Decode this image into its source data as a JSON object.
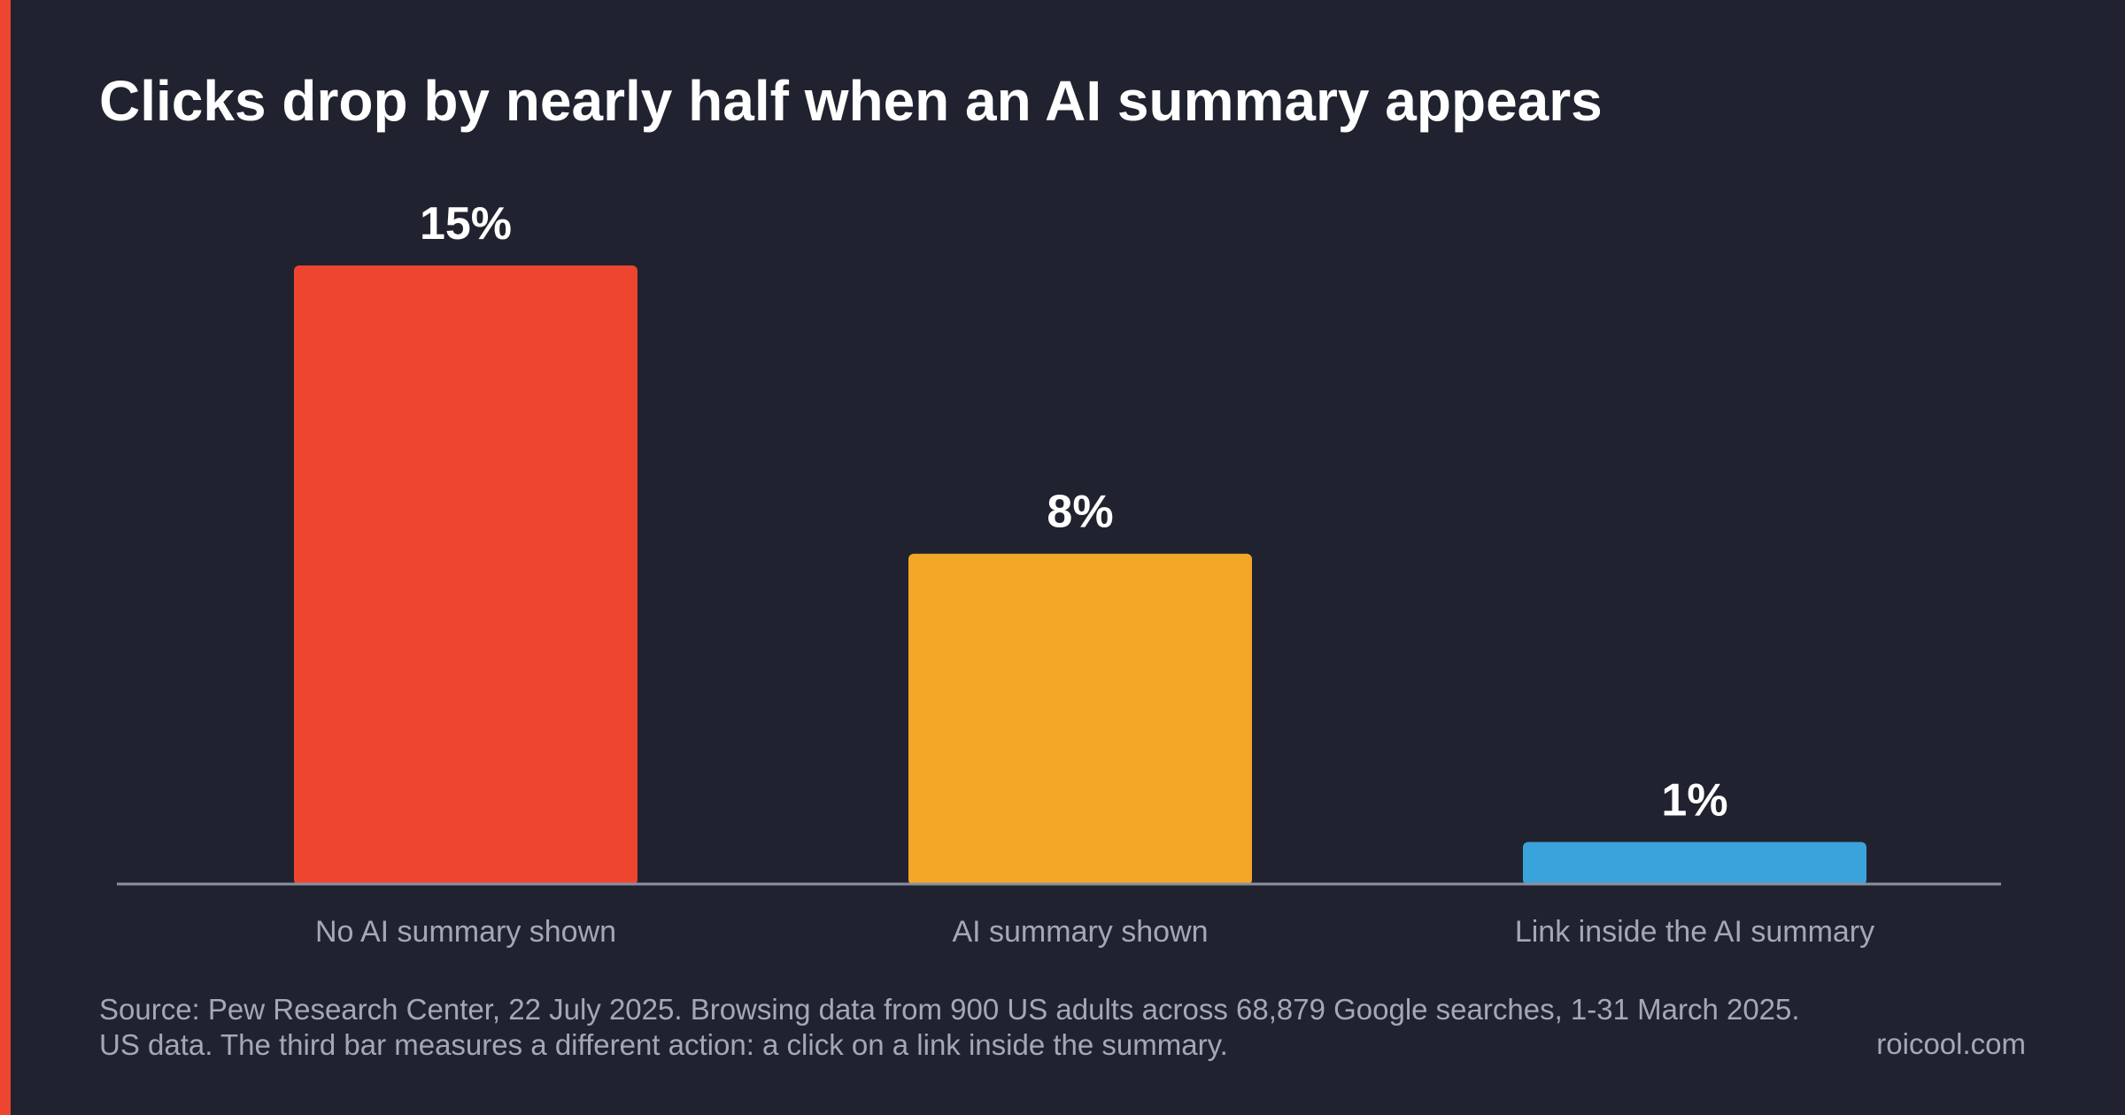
{
  "colors": {
    "background": "#20232f",
    "accent": "#ee4530",
    "muted_text": "#a3a8b8",
    "baseline": "#8b90a0"
  },
  "chart_data": {
    "type": "bar",
    "title": "Clicks drop by nearly half when an AI summary appears",
    "categories": [
      "No AI summary shown",
      "AI summary shown",
      "Link inside the AI summary"
    ],
    "values": [
      15,
      8,
      1
    ],
    "value_labels": [
      "15%",
      "8%",
      "1%"
    ],
    "bar_colors": [
      "#ee4530",
      "#f4a627",
      "#3aa3db"
    ],
    "unit": "%",
    "ylim": [
      0,
      15
    ],
    "grid": false,
    "legend": "none",
    "xlabel": "",
    "ylabel": ""
  },
  "footer": {
    "source": "Source: Pew Research Center, 22 July 2025. Browsing data from 900 US adults across 68,879 Google searches, 1-31 March 2025. US data. The third bar measures a different action: a click on a link inside the summary.",
    "brand": "roicool.com"
  }
}
